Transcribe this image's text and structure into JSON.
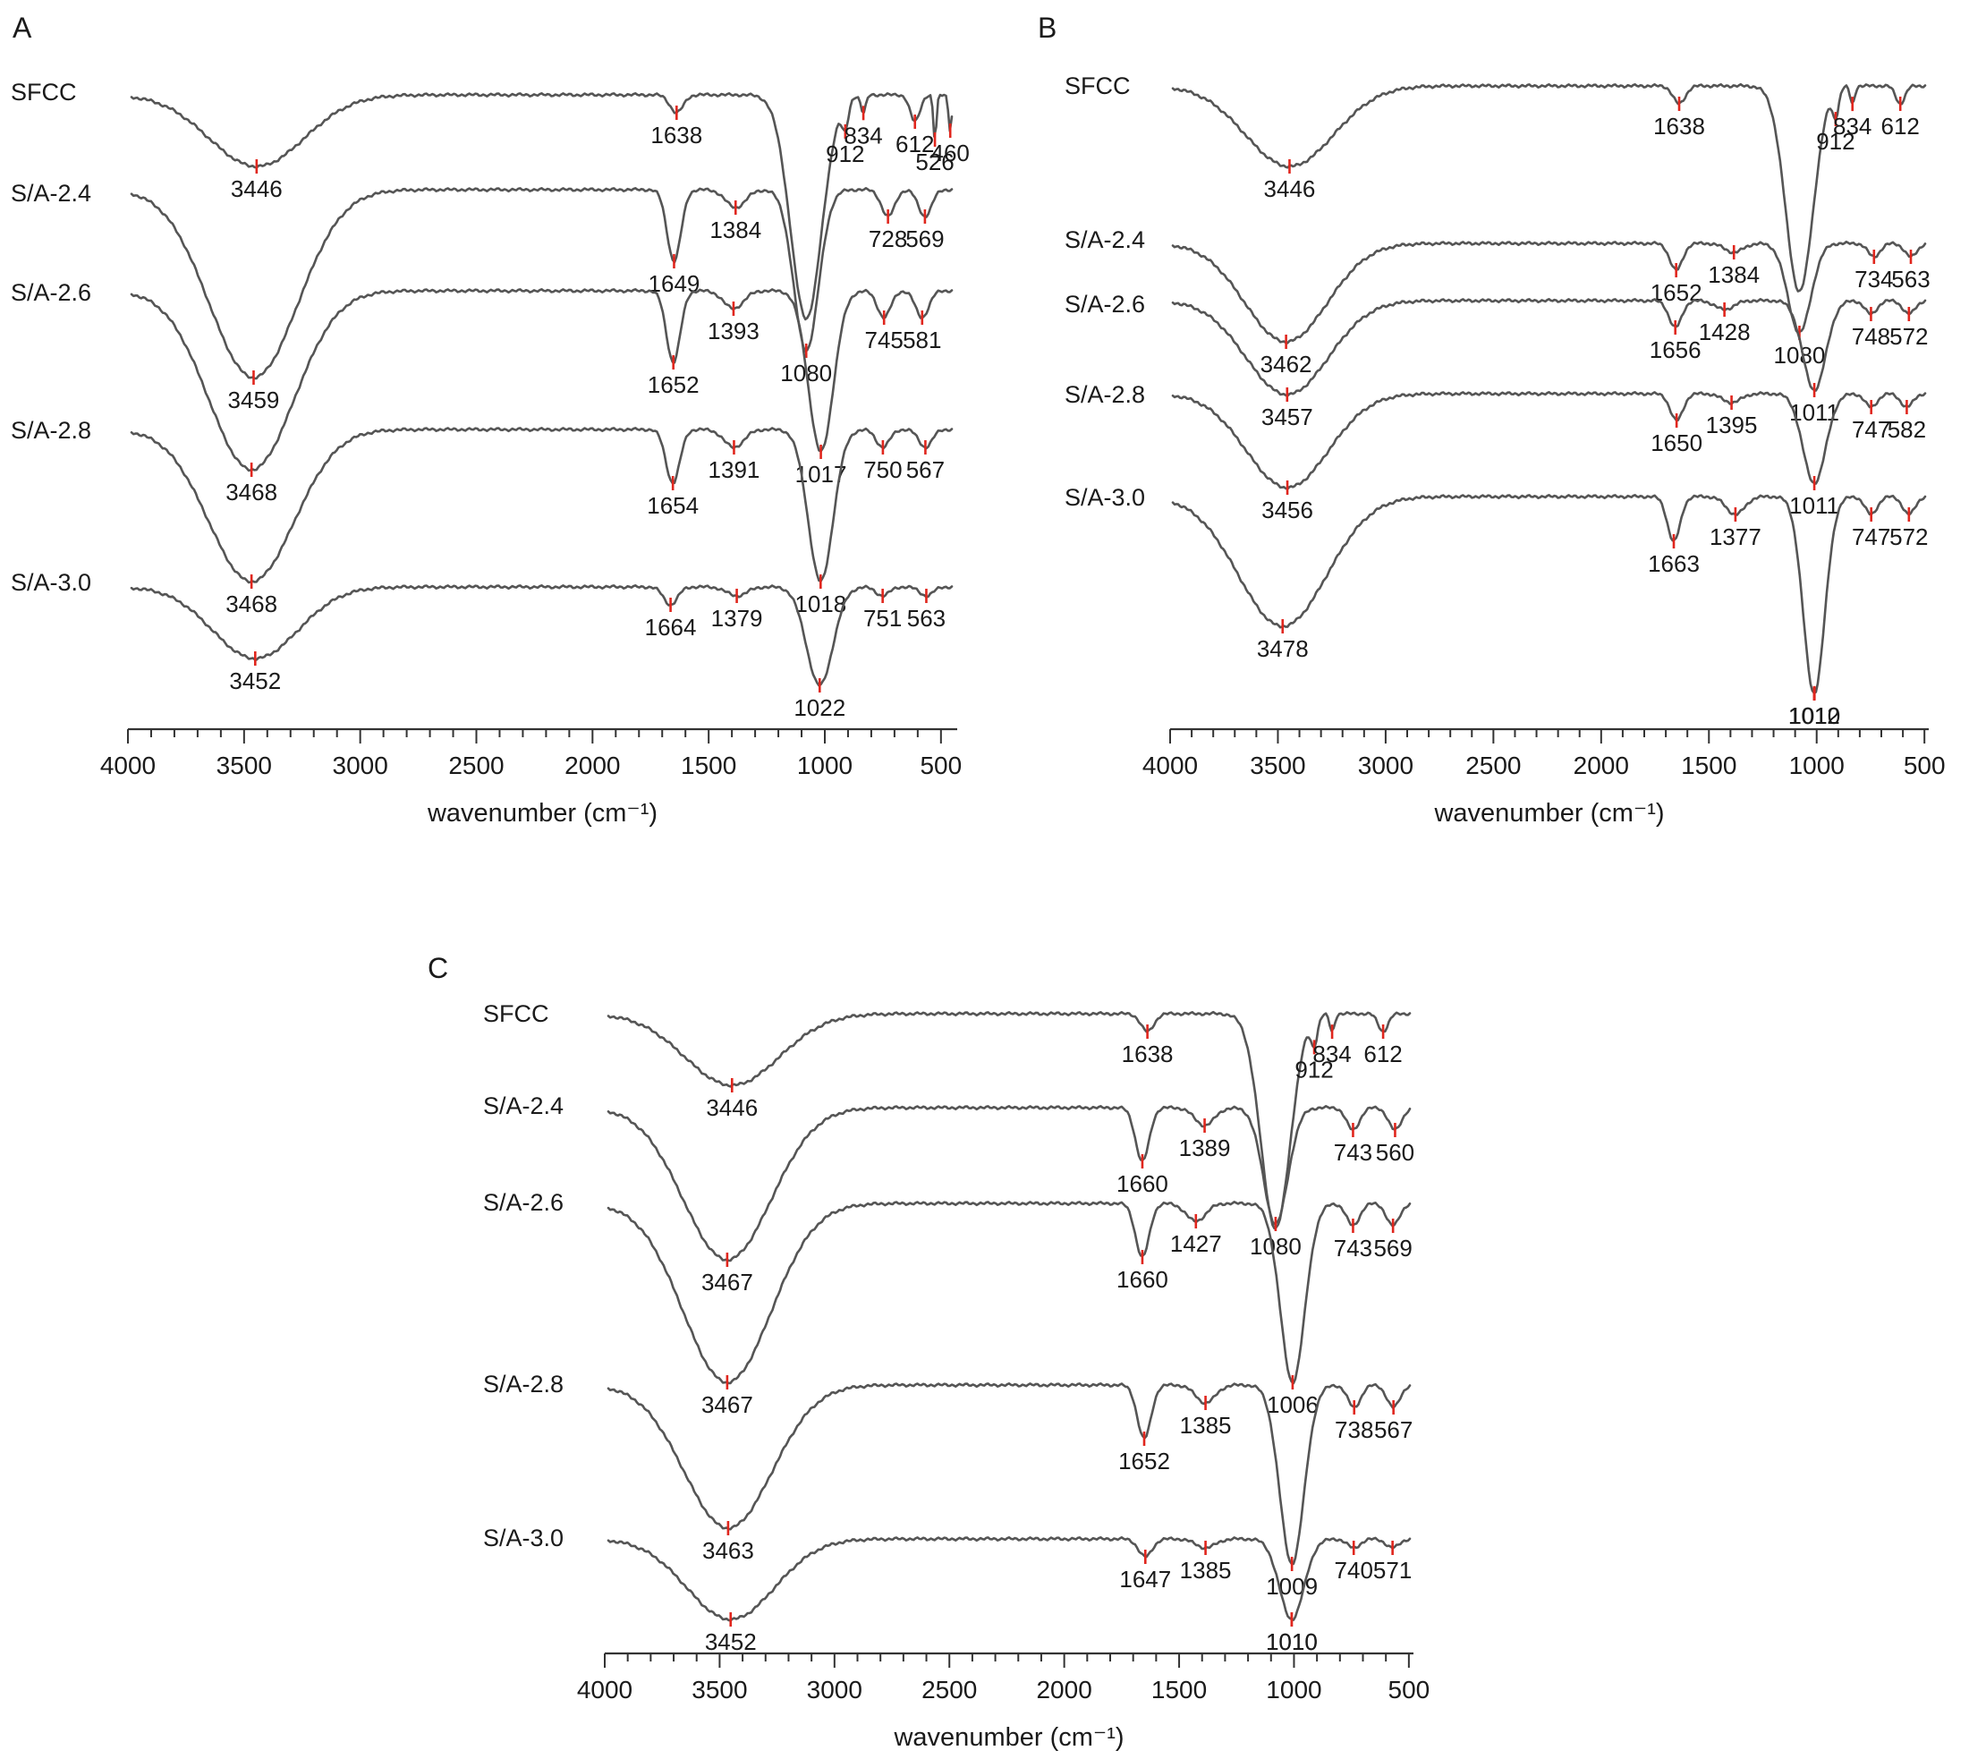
{
  "colors": {
    "trace": "#555555",
    "marker": "#e0261d",
    "axis": "#333333",
    "text": "#1a1a1a"
  },
  "chart_data": [
    {
      "type": "line",
      "panel_label": "A",
      "xlabel": "wavenumber (cm⁻¹)",
      "x_ticks": [
        4000,
        3500,
        3000,
        2500,
        2000,
        1500,
        1000,
        500
      ],
      "xlim": [
        4000,
        430
      ],
      "y_axis": "none (traces offset vertically)",
      "series": [
        {
          "name": "SFCC",
          "peaks": [
            3446,
            1638,
            912,
            834,
            612,
            526,
            460
          ]
        },
        {
          "name": "S/A-2.4",
          "peaks": [
            3459,
            1649,
            1384,
            1080,
            728,
            569
          ]
        },
        {
          "name": "S/A-2.6",
          "peaks": [
            3468,
            1652,
            1393,
            1017,
            745,
            581
          ]
        },
        {
          "name": "S/A-2.8",
          "peaks": [
            3468,
            1654,
            1391,
            1018,
            750,
            567
          ]
        },
        {
          "name": "S/A-3.0",
          "peaks": [
            3452,
            1664,
            1379,
            1022,
            751,
            563
          ]
        }
      ],
      "series_labels": {
        "SFCC": [
          "3446",
          "1638",
          "912",
          "834",
          "612",
          "526",
          "460"
        ],
        "S/A-2.4": [
          "3459",
          "1649",
          "1384",
          "1080",
          "728",
          "569"
        ],
        "S/A-2.6": [
          "3468",
          "1652",
          "1393",
          "1017",
          "745",
          "581"
        ],
        "S/A-2.8": [
          "3468",
          "1654",
          "1391",
          "1018",
          "750",
          "567"
        ],
        "S/A-3.0": [
          "3452",
          "1664",
          "1379",
          "1022",
          "751",
          "563"
        ]
      }
    },
    {
      "type": "line",
      "panel_label": "B",
      "xlabel": "wavenumber (cm⁻¹)",
      "x_ticks": [
        4000,
        3500,
        3000,
        2500,
        2000,
        1500,
        1000,
        500
      ],
      "xlim": [
        4000,
        480
      ],
      "y_axis": "none (traces offset vertically)",
      "series": [
        {
          "name": "SFCC",
          "peaks": [
            3446,
            1638,
            912,
            834,
            612
          ]
        },
        {
          "name": "S/A-2.4",
          "peaks": [
            3462,
            1652,
            1384,
            1080,
            734,
            563
          ]
        },
        {
          "name": "S/A-2.6",
          "peaks": [
            3457,
            1656,
            1428,
            1011,
            748,
            572
          ]
        },
        {
          "name": "S/A-2.8",
          "peaks": [
            3456,
            1650,
            1395,
            1011,
            747,
            582
          ]
        },
        {
          "name": "S/A-3.0",
          "peaks": [
            3478,
            1663,
            1377,
            1010,
            1012,
            747,
            572
          ]
        }
      ],
      "series_labels": {
        "SFCC": [
          "3446",
          "1638",
          "912",
          "834",
          "612"
        ],
        "S/A-2.4": [
          "3462",
          "1652",
          "1384",
          "1080",
          "734",
          "563"
        ],
        "S/A-2.6": [
          "3457",
          "1656",
          "1428",
          "1011",
          "748",
          "572"
        ],
        "S/A-2.8": [
          "3456",
          "1650",
          "1395",
          "1011",
          "747",
          "582"
        ],
        "S/A-3.0": [
          "3478",
          "1663",
          "1377",
          "1010",
          "1012",
          "747",
          "572"
        ]
      }
    },
    {
      "type": "line",
      "panel_label": "C",
      "xlabel": "wavenumber (cm⁻¹)",
      "x_ticks": [
        4000,
        3500,
        3000,
        2500,
        2000,
        1500,
        1000,
        500
      ],
      "xlim": [
        4000,
        480
      ],
      "y_axis": "none (traces offset vertically)",
      "series": [
        {
          "name": "SFCC",
          "peaks": [
            3446,
            1638,
            912,
            834,
            612
          ]
        },
        {
          "name": "S/A-2.4",
          "peaks": [
            3467,
            1660,
            1389,
            1080,
            743,
            560
          ]
        },
        {
          "name": "S/A-2.6",
          "peaks": [
            3467,
            1660,
            1427,
            1006,
            743,
            569
          ]
        },
        {
          "name": "S/A-2.8",
          "peaks": [
            3463,
            1652,
            1385,
            1009,
            738,
            567
          ]
        },
        {
          "name": "S/A-3.0",
          "peaks": [
            3452,
            1647,
            1385,
            1010,
            1010,
            740,
            571
          ]
        }
      ],
      "series_labels": {
        "SFCC": [
          "3446",
          "1638",
          "912",
          "834",
          "612"
        ],
        "S/A-2.4": [
          "3467",
          "1660",
          "1389",
          "1080",
          "743",
          "560"
        ],
        "S/A-2.6": [
          "3467",
          "1660",
          "1427",
          "1006",
          "743",
          "569"
        ],
        "S/A-2.8": [
          "3463",
          "1652",
          "1385",
          "1009",
          "738",
          "567"
        ],
        "S/A-3.0": [
          "3452",
          "1647",
          "1385",
          "1010",
          "1010",
          "740",
          "571"
        ]
      }
    }
  ]
}
